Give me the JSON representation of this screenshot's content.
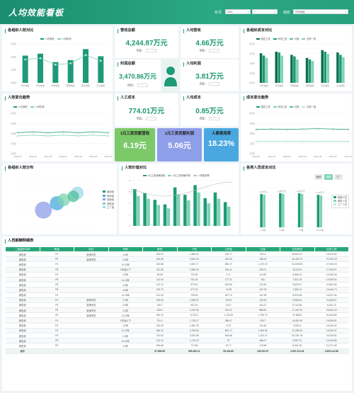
{
  "header": {
    "title": "人均效能看板",
    "year_label": "年月",
    "year_value": "2021",
    "month_value": "7",
    "org_label": "组织",
    "org_value": "华东地区"
  },
  "panels": {
    "org_eff": {
      "title": "各组织人效对比",
      "legend": [
        "人均营收",
        "人均利润"
      ]
    },
    "org_cost": {
      "title": "各组织成本对比",
      "legend": [
        "固定工资",
        "浮动工资",
        "社保",
        "五险一金",
        "人员工资",
        "人工成本"
      ]
    },
    "trend": {
      "title": "人效变化趋势",
      "legend": [
        "人均营收",
        "人均利润"
      ]
    },
    "cost_trend": {
      "title": "成本变化趋势",
      "legend": [
        "固定工资",
        "浮动工资",
        "社保",
        "五险一金",
        "其他"
      ]
    },
    "dist": {
      "title": "各组织人效分布",
      "legend": [
        "路线组",
        "电商组",
        "营销组",
        "质检组",
        "工厂组"
      ]
    },
    "value": {
      "title": "人效价值对比",
      "legend": [
        "1元工资贡献营收",
        "1元工资贡献利润",
        "人事费用率"
      ]
    },
    "sales_cost": {
      "title": "各类人员成本对比",
      "tabs": [
        "营销",
        "销售",
        "工厂"
      ],
      "legend": [
        "营销人员",
        "销售人员",
        "工厂人员"
      ]
    }
  },
  "kpis": {
    "revenue": {
      "title": "营收总额",
      "value": "4,244.87万元",
      "yoy": "同比："
    },
    "per_revenue": {
      "title": "人均营收",
      "value": "4.66万元",
      "yoy": "同比："
    },
    "profit": {
      "title": "利润总额",
      "value": "3,470.86万元",
      "yoy": "同比："
    },
    "per_profit": {
      "title": "人均利润",
      "value": "3.81万元",
      "yoy": "同比："
    },
    "labor_cost": {
      "title": "人工成本",
      "value": "774.01万元",
      "yoy": "同比："
    },
    "per_cost": {
      "title": "人均成本",
      "value": "0.85万元",
      "yoy": "同比："
    },
    "rev_per_wage": {
      "title": "1元工资贡献营收",
      "value": "6.19元"
    },
    "profit_per_wage": {
      "title": "1元工资贡献利润",
      "value": "5.06元"
    },
    "hr_rate": {
      "title": "人事费用率",
      "value": "18.23%"
    }
  },
  "colors": {
    "primary": "#1f9a78",
    "dark": "#0e6e52",
    "light": "#7ed3b2",
    "pale": "#bfe8d8",
    "rev_card": "#7cc96a",
    "profit_card": "#8f9ee8",
    "rate_card": "#4aa8e0"
  },
  "table": {
    "title": "人员薪酬明细表",
    "headers": [
      "二级组织名称",
      "职级",
      "岗位",
      "司龄",
      "薪资",
      "个税",
      "公积金",
      "社保",
      "实发薪资",
      "应发工资"
    ],
    "rows": [
      [
        "销售部",
        "P3",
        "营销专员",
        "4-5年",
        "263.03",
        "2,596.42",
        "403.77",
        "921.4",
        "45,610.47",
        "18,012.80"
      ],
      [
        "销售部",
        "P5",
        "营销专员",
        "4-5年",
        "249.05",
        "3,623.43",
        "429.26",
        "188.19",
        "36,492.73",
        "27,043.29"
      ],
      [
        "销售部",
        "P4",
        "",
        "11-20年",
        "313.65",
        "4,637.17",
        "830.27",
        "1,270.19",
        "51,849.63",
        "27,040.18"
      ],
      [
        "销售部",
        "P5",
        "",
        "1年及以下",
        "201.59",
        "2,506.23",
        "204.11",
        "245.71",
        "15,219.6",
        "17,103.97"
      ],
      [
        "销售部",
        "P4",
        "",
        "4-5年",
        "38.56",
        "720.93",
        "2.17",
        "114.52",
        "8,895.13",
        "12,049.26"
      ],
      [
        "销售部",
        "P5",
        "",
        "11-20年",
        "113.04",
        "701.34",
        "177.21",
        "181",
        "7,611.15",
        "14,006.92"
      ],
      [
        "销售部",
        "P5",
        "",
        "4-5年",
        "112.12",
        "979.61",
        "152.69",
        "123.26",
        "9,502.67",
        "11,802.36"
      ],
      [
        "销售部",
        "P5",
        "",
        "4-5年",
        "132.72",
        "477.13",
        "74.08",
        "102.78",
        "7,582.12",
        "19,440.73"
      ],
      [
        "销售部",
        "P4",
        "",
        "11-20年",
        "121.03",
        "725.26",
        "187.74",
        "121.59",
        "6,576.28",
        "15,027.64"
      ],
      [
        "销售部",
        "P3",
        "营销专员",
        "2-3年",
        "169.64",
        "1,649.57",
        "33.03",
        "125.45",
        "9,595.44",
        "11,005.67"
      ],
      [
        "销售部",
        "P3",
        "营销专员",
        "4-5年",
        "120.7",
        "921.51",
        "14.07",
        "104.27",
        "6,742.36",
        "6,102.73"
      ],
      [
        "销售部",
        "P5",
        "营销专员",
        "2-3年",
        "303.2",
        "3,733.46",
        "702.21",
        "858.84",
        "47,407.32",
        "26,061.43"
      ],
      [
        "销售部",
        "P5",
        "营销专员",
        "11-20年",
        "910.12",
        "8,715.3",
        "1,709.49",
        "1,750.72",
        "97,836.5",
        "41,603.89"
      ],
      [
        "销售部",
        "P4",
        "",
        "1年及以下",
        "751.1",
        "1,735.27",
        "285.47",
        "234.7",
        "14,551.26",
        "19,053.61"
      ],
      [
        "销售部",
        "P2",
        "",
        "4-5年",
        "153.32",
        "1,651.78",
        "47.8",
        "144.46",
        "9,502.4",
        "15,106.32"
      ],
      [
        "销售部",
        "P4",
        "",
        "11-20年",
        "964.12",
        "3,750.82",
        "581.77",
        "1,050.82",
        "72,283.93",
        "19,023.47"
      ],
      [
        "销售部",
        "P3",
        "",
        "2-3年",
        "373.52",
        "3,024.36",
        "519.68",
        "1,223.47",
        "62,181.78",
        "20,030.81"
      ],
      [
        "销售部",
        "P5",
        "",
        "11-20年",
        "114.14",
        "1,715.24",
        "37",
        "186.07",
        "9,567.11",
        "14,019.56"
      ],
      [
        "销售部",
        "P5",
        "",
        "4-5年",
        "150.66",
        "717.89",
        "19.77",
        "178.66",
        "6,021.06",
        "11,071.09"
      ]
    ],
    "total": [
      "合计",
      "",
      "",
      "",
      "87,880.55",
      "590,460.21",
      "99,404.80",
      "128,153.07",
      "3,067,212.44",
      "2,905,112.86"
    ]
  },
  "chart_data": [
    {
      "type": "bar",
      "title": "各组织人效对比",
      "categories": [
        "华北地区",
        "华东地区",
        "华南地区",
        "西南地区",
        "西北地区",
        "东北地区"
      ],
      "series": [
        {
          "name": "人均营收",
          "values": [
            4.2,
            4.5,
            3.2,
            3.5,
            5.2,
            4.1
          ]
        },
        {
          "name": "人均利润",
          "values": [
            3.6,
            3.8,
            2.8,
            3.0,
            4.3,
            3.4
          ]
        }
      ],
      "ylim": [
        0,
        6
      ]
    },
    {
      "type": "bar",
      "title": "各组织成本对比",
      "categories": [
        "华北地区",
        "华东地区",
        "华南地区",
        "西南地区",
        "西北地区",
        "东北地区"
      ],
      "series": [
        {
          "name": "固定工资",
          "values": [
            3.8,
            4.0,
            3.6,
            3.2,
            4.2,
            3.9
          ]
        },
        {
          "name": "浮动工资",
          "values": [
            3.5,
            3.9,
            3.4,
            3.0,
            4.0,
            3.6
          ]
        },
        {
          "name": "人工成本",
          "values": [
            3.2,
            3.5,
            3.0,
            2.8,
            3.7,
            3.3
          ]
        }
      ],
      "ylim": [
        0,
        5
      ]
    },
    {
      "type": "line",
      "title": "人效变化趋势",
      "x": [
        "2021-01",
        "2021-02",
        "2021-03",
        "2021-04",
        "2021-05",
        "2021-06",
        "2021-07"
      ],
      "series": [
        {
          "name": "人均营收",
          "values": [
            2.6,
            2.7,
            2.6,
            2.7,
            2.6,
            2.7,
            2.6
          ]
        },
        {
          "name": "人均利润",
          "values": [
            2.2,
            2.3,
            2.2,
            2.3,
            2.2,
            2.3,
            2.2
          ]
        }
      ],
      "ylim": [
        0,
        5
      ]
    },
    {
      "type": "line",
      "title": "成本变化趋势",
      "x": [
        "2021-01",
        "2021-02",
        "2021-03",
        "2021-04",
        "2021-05",
        "2021-06",
        "2021-07"
      ],
      "series": [
        {
          "name": "固定工资",
          "values": [
            3.0,
            3.05,
            3.0,
            3.05,
            3.1,
            3.05,
            3.0
          ]
        },
        {
          "name": "浮动工资",
          "values": [
            1.5,
            1.5,
            1.5,
            1.5,
            1.5,
            1.5,
            1.5
          ]
        }
      ],
      "ylim": [
        0,
        5
      ]
    },
    {
      "type": "scatter",
      "title": "各组织人效分布",
      "series": [
        {
          "name": "路线组",
          "values": [
            [
              4.0,
              3.5
            ]
          ]
        },
        {
          "name": "电商组",
          "values": [
            [
              5.0,
              4.5
            ]
          ]
        },
        {
          "name": "营销组",
          "values": [
            [
              5.5,
              5.0
            ]
          ]
        },
        {
          "name": "质检组",
          "values": [
            [
              6.5,
              6.0
            ]
          ]
        },
        {
          "name": "工厂组",
          "values": [
            [
              6.2,
              5.5
            ]
          ]
        }
      ]
    },
    {
      "type": "bar",
      "title": "人效价值对比",
      "categories": [
        "1",
        "2",
        "3",
        "4",
        "5",
        "6",
        "7",
        "8",
        "9",
        "10"
      ],
      "series": [
        {
          "name": "1元工资贡献营收",
          "values": [
            6.5,
            5.8,
            4.6,
            3.8,
            6.8,
            5.5,
            7.2,
            4.9,
            5.9,
            4.2
          ]
        },
        {
          "name": "1元工资贡献利润",
          "values": [
            5.3,
            4.8,
            3.7,
            3.1,
            5.6,
            4.5,
            5.9,
            4.0,
            4.8,
            3.4
          ]
        }
      ],
      "ylim": [
        0,
        8
      ]
    },
    {
      "type": "bar",
      "title": "各类人员成本对比",
      "categories": [
        "1-3级",
        "4-6级",
        "7-9级",
        "10-12级"
      ],
      "series": [
        {
          "name": "营销人员",
          "values": [
            4.2,
            4.3,
            4.3,
            4.1
          ]
        }
      ],
      "ylim": [
        0,
        5
      ]
    }
  ]
}
